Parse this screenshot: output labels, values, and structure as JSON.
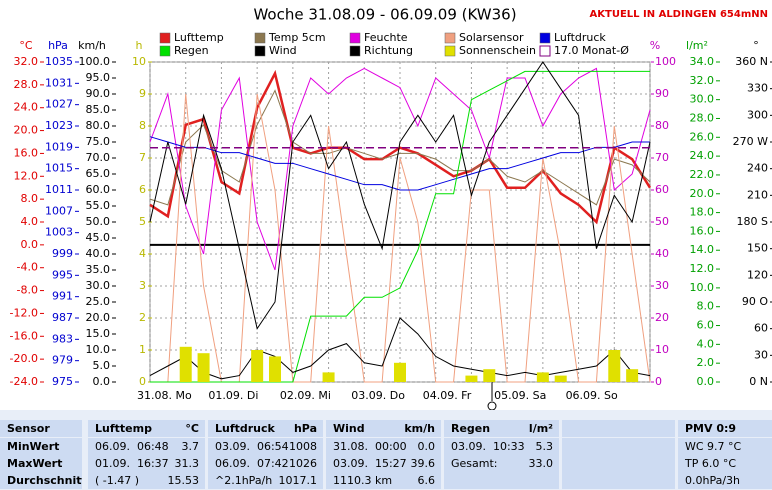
{
  "chart_data": {
    "type": "line",
    "title": "Woche 31.08.09 - 06.09.09 (KW36)",
    "annotation": "AKTUELL IN ALDINGEN 654mNN",
    "categories": [
      "31.08. Mo",
      null,
      null,
      null,
      "01.09. Di",
      null,
      null,
      null,
      "02.09. Mi",
      null,
      null,
      null,
      "03.09. Do",
      null,
      null,
      null,
      "04.09. Fr",
      null,
      null,
      null,
      "05.09. Sa",
      null,
      null,
      null,
      "06.09. So",
      null,
      null,
      null,
      null
    ],
    "grid": true,
    "axes": {
      "temp": {
        "label": "°C",
        "color": "#e00000",
        "lim": [
          -24,
          32
        ],
        "ticks": [
          {
            "value": -24,
            "label": "-24.0"
          },
          {
            "value": -20,
            "label": "-20.0"
          },
          {
            "value": -16,
            "label": "-16.0"
          },
          {
            "value": -12,
            "label": "-12.0"
          },
          {
            "value": -8,
            "label": "-8.0"
          },
          {
            "value": -4,
            "label": "-4.0"
          },
          {
            "value": 0,
            "label": "0.0"
          },
          {
            "value": 4,
            "label": "4.0"
          },
          {
            "value": 8,
            "label": "8.0"
          },
          {
            "value": 12,
            "label": "12.0"
          },
          {
            "value": 16,
            "label": "16.0"
          },
          {
            "value": 20,
            "label": "20.0"
          },
          {
            "value": 24,
            "label": "24.0"
          },
          {
            "value": 28,
            "label": "28.0"
          },
          {
            "value": 32,
            "label": "32.0"
          }
        ]
      },
      "press": {
        "label": "hPa",
        "color": "#0000d0",
        "lim": [
          975,
          1035
        ],
        "ticks": [
          975,
          979,
          983,
          987,
          991,
          995,
          999,
          1003,
          1007,
          1011,
          1015,
          1019,
          1023,
          1027,
          1031,
          1035
        ]
      },
      "wind": {
        "label": "km/h",
        "color": "#000000",
        "lim": [
          0,
          100
        ],
        "ticks": [
          {
            "value": 0,
            "label": "0.0"
          },
          {
            "value": 5,
            "label": "5.0"
          },
          {
            "value": 10,
            "label": "10.0"
          },
          {
            "value": 15,
            "label": "15.0"
          },
          {
            "value": 20,
            "label": "20.0"
          },
          {
            "value": 25,
            "label": "25.0"
          },
          {
            "value": 30,
            "label": "30.0"
          },
          {
            "value": 35,
            "label": "35.0"
          },
          {
            "value": 40,
            "label": "40.0"
          },
          {
            "value": 45,
            "label": "45.0"
          },
          {
            "value": 50,
            "label": "50.0"
          },
          {
            "value": 55,
            "label": "55.0"
          },
          {
            "value": 60,
            "label": "60.0"
          },
          {
            "value": 65,
            "label": "65.0"
          },
          {
            "value": 70,
            "label": "70.0"
          },
          {
            "value": 75,
            "label": "75.0"
          },
          {
            "value": 80,
            "label": "80.0"
          },
          {
            "value": 85,
            "label": "85.0"
          },
          {
            "value": 90,
            "label": "90.0"
          },
          {
            "value": 95,
            "label": "95.0"
          },
          {
            "value": 100,
            "label": "100.0"
          }
        ]
      },
      "sun": {
        "label": "h",
        "color": "#b8b800",
        "lim": [
          0,
          10
        ],
        "ticks": [
          0,
          1,
          2,
          3,
          4,
          5,
          6,
          7,
          8,
          9,
          10
        ]
      },
      "pct": {
        "label": "%",
        "color": "#c000c0",
        "lim": [
          0,
          100
        ],
        "ticks": [
          0,
          10,
          20,
          30,
          40,
          50,
          60,
          70,
          80,
          90,
          100
        ]
      },
      "rain": {
        "label": "l/m²",
        "color": "#00a000",
        "lim": [
          0,
          34
        ],
        "ticks": [
          {
            "value": 0,
            "label": "0.0"
          },
          {
            "value": 2,
            "label": "2.0"
          },
          {
            "value": 4,
            "label": "4.0"
          },
          {
            "value": 6,
            "label": "6.0"
          },
          {
            "value": 8,
            "label": "8.0"
          },
          {
            "value": 10,
            "label": "10.0"
          },
          {
            "value": 12,
            "label": "12.0"
          },
          {
            "value": 14,
            "label": "14.0"
          },
          {
            "value": 16,
            "label": "16.0"
          },
          {
            "value": 18,
            "label": "18.0"
          },
          {
            "value": 20,
            "label": "20.0"
          },
          {
            "value": 22,
            "label": "22.0"
          },
          {
            "value": 24,
            "label": "24.0"
          },
          {
            "value": 26,
            "label": "26.0"
          },
          {
            "value": 28,
            "label": "28.0"
          },
          {
            "value": 30,
            "label": "30.0"
          },
          {
            "value": 32,
            "label": "32.0"
          },
          {
            "value": 34,
            "label": "34.0"
          }
        ]
      },
      "dir": {
        "label": "°",
        "color": "#000000",
        "lim": [
          0,
          360
        ],
        "ticks": [
          {
            "value": 0,
            "label": "0 N"
          },
          30,
          60,
          {
            "value": 90,
            "label": "90 O"
          },
          120,
          150,
          {
            "value": 180,
            "label": "180 S"
          },
          210,
          240,
          {
            "value": 270,
            "label": "270 W"
          },
          300,
          330,
          {
            "value": 360,
            "label": "360 N"
          }
        ]
      }
    },
    "series": [
      {
        "name": "Lufttemp",
        "color": "#e02020",
        "axis": "temp",
        "values": [
          7,
          5,
          21,
          22,
          11,
          9,
          24,
          30,
          17,
          16,
          17,
          17,
          15,
          15,
          17,
          16,
          14,
          12,
          13,
          15,
          10,
          10,
          13,
          9,
          7,
          4,
          17,
          15,
          10
        ]
      },
      {
        "name": "Temp 5cm",
        "color": "#8c7850",
        "axis": "temp",
        "values": [
          8,
          7,
          18,
          21,
          13,
          11,
          21,
          27,
          18,
          16,
          16,
          17,
          16,
          15,
          16,
          16,
          15,
          13,
          13,
          15,
          12,
          11,
          13,
          11,
          9,
          7,
          15,
          14,
          11
        ]
      },
      {
        "name": "Feuchte",
        "color": "#e000e0",
        "axis": "pct",
        "values": [
          75,
          90,
          55,
          40,
          85,
          95,
          50,
          35,
          80,
          95,
          90,
          95,
          98,
          95,
          92,
          80,
          95,
          90,
          85,
          70,
          95,
          95,
          80,
          90,
          95,
          98,
          60,
          65,
          85
        ]
      },
      {
        "name": "Solarsensor",
        "color": "#f0a080",
        "axis": "pct",
        "values": [
          0,
          0,
          90,
          30,
          0,
          0,
          90,
          60,
          0,
          0,
          80,
          40,
          0,
          0,
          70,
          50,
          0,
          0,
          60,
          60,
          0,
          0,
          70,
          40,
          0,
          0,
          80,
          40,
          0
        ]
      },
      {
        "name": "Luftdruck",
        "color": "#0000e0",
        "axis": "press",
        "values": [
          1021,
          1020,
          1019,
          1019,
          1018,
          1018,
          1017,
          1016,
          1016,
          1015,
          1014,
          1013,
          1012,
          1012,
          1011,
          1011,
          1012,
          1013,
          1014,
          1015,
          1015,
          1016,
          1017,
          1018,
          1018,
          1019,
          1019,
          1020,
          1020
        ]
      },
      {
        "name": "Regen",
        "color": "#00e000",
        "axis": "rain",
        "values": [
          0,
          0,
          0,
          0,
          0,
          0,
          0,
          0,
          0,
          7,
          7,
          7,
          9,
          9,
          10,
          14,
          20,
          20,
          30,
          31,
          32,
          33,
          33,
          33,
          33,
          33,
          33,
          33,
          33
        ]
      },
      {
        "name": "Wind",
        "color": "#000000",
        "axis": "wind",
        "values": [
          2,
          5,
          8,
          3,
          1,
          2,
          10,
          8,
          3,
          5,
          10,
          12,
          6,
          5,
          20,
          15,
          8,
          5,
          4,
          3,
          2,
          3,
          2,
          3,
          4,
          5,
          10,
          3,
          2
        ]
      },
      {
        "name": "Richtung",
        "color": "#000000",
        "axis": "dir",
        "values": [
          180,
          270,
          200,
          300,
          240,
          150,
          60,
          90,
          270,
          300,
          240,
          270,
          200,
          150,
          270,
          300,
          270,
          300,
          210,
          270,
          300,
          330,
          360,
          330,
          300,
          150,
          210,
          180,
          270
        ]
      },
      {
        "name": "Sonnenschein",
        "color": "#e0e000",
        "axis": "sun",
        "style": "bar",
        "values": [
          0,
          0,
          1.1,
          0.9,
          0,
          0,
          1,
          0.8,
          0,
          0,
          0.3,
          0,
          0,
          0,
          0.6,
          0,
          0,
          0,
          0.2,
          0.4,
          0,
          0,
          0.3,
          0.2,
          0,
          0,
          1,
          0.4,
          0
        ]
      }
    ],
    "monthly_mean": {
      "value": 17,
      "label": "17.0 Monat-Ø",
      "color": "#800080",
      "axis": "temp"
    }
  },
  "table": {
    "header": [
      [
        "Sensor"
      ],
      [
        "Lufttemp",
        "°C"
      ],
      [
        "Luftdruck",
        "hPa"
      ],
      [
        "Wind",
        "km/h"
      ],
      [
        "Regen",
        "l/m²"
      ],
      [],
      [
        "PMV 0:9"
      ]
    ],
    "rows": [
      [
        [
          "MinWert"
        ],
        [
          "06.09.  06:48",
          "3.7"
        ],
        [
          "03.09.  06:54",
          "1008"
        ],
        [
          "31.08.  00:00",
          "0.0"
        ],
        [
          "03.09.  10:33",
          "5.3"
        ],
        [],
        [
          "WC 9.7 °C"
        ]
      ],
      [
        [
          "MaxWert"
        ],
        [
          "01.09.  16:37",
          "31.3"
        ],
        [
          "06.09.  07:42",
          "1026"
        ],
        [
          "03.09.  15:27",
          "39.6"
        ],
        [
          "Gesamt:",
          "33.0"
        ],
        [],
        [
          "TP 6.0 °C"
        ]
      ],
      [
        [
          "Durchschnitt"
        ],
        [
          "( -1.47 )",
          "15.53"
        ],
        [
          "^2.1hPa/h",
          "1017.1"
        ],
        [
          "1110.3 km",
          "6.6"
        ],
        [],
        [],
        [
          "0.0hPa/3h"
        ]
      ]
    ]
  }
}
